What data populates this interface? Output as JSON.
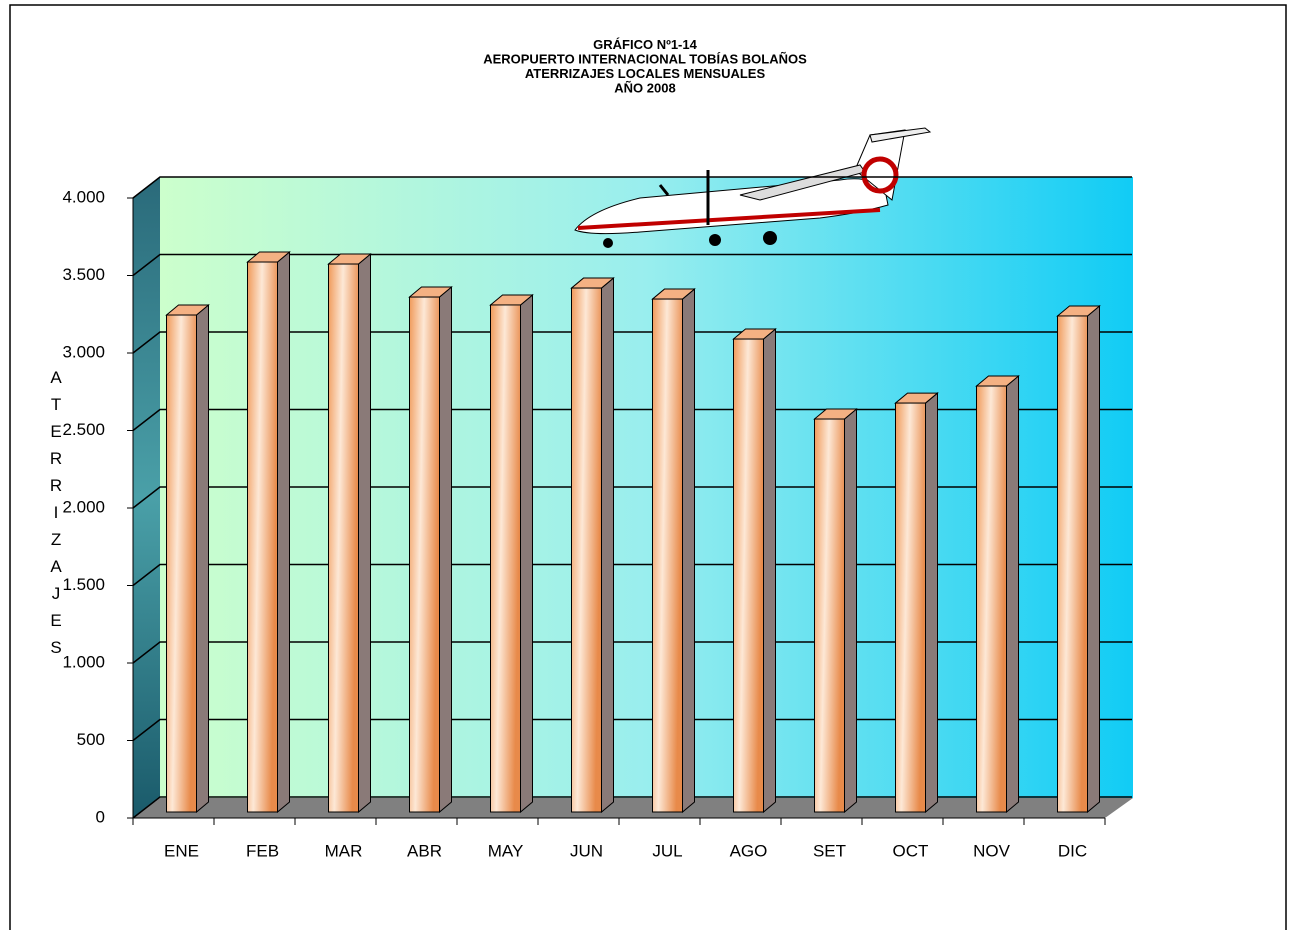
{
  "chart_data": {
    "type": "bar",
    "title": [
      "GRÁFICO Nº1-14",
      "AEROPUERTO INTERNACIONAL TOBÍAS BOLAÑOS",
      "ATERRIZAJES LOCALES MENSUALES",
      "AÑO 2008"
    ],
    "y_label": "ATERRIZAJES",
    "categories": [
      "ENE",
      "FEB",
      "MAR",
      "ABR",
      "MAY",
      "JUN",
      "JUL",
      "AGO",
      "SET",
      "OCT",
      "NOV",
      "DIC"
    ],
    "values": [
      3245,
      3587,
      3574,
      3361,
      3310,
      3419,
      3348,
      3090,
      2574,
      2677,
      2787,
      3239
    ],
    "color": "#f4b183",
    "ylim": [
      0,
      4000
    ],
    "yticks": [
      0,
      500,
      {
        "value": 1000,
        "label": "1.000"
      },
      {
        "value": 1500,
        "label": "1.500"
      },
      {
        "value": 2000,
        "label": "2.000"
      },
      {
        "value": 2500,
        "label": "2.500"
      },
      {
        "value": 3000,
        "label": "3.000"
      },
      {
        "value": 3500,
        "label": "3.500"
      },
      {
        "value": 4000,
        "label": "4.000"
      }
    ],
    "grid": true
  }
}
